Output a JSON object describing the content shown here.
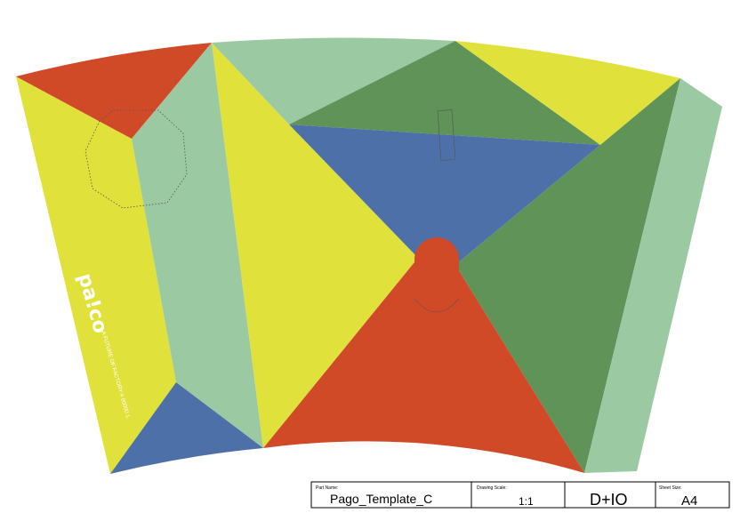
{
  "template": {
    "colors": {
      "yellow": "#e1e13c",
      "red": "#d14a28",
      "light_green": "#9bc9a2",
      "dark_green": "#5f9357",
      "blue": "#4e70a8"
    },
    "branding": {
      "logo": "pa!co",
      "tagline": "A FUTURE OF FACTORY # 00000 1."
    }
  },
  "title_block": {
    "part_name_label": "Part Name:",
    "part_name": "Pago_Template_C",
    "drawing_scale_label": "Drawing Scale:",
    "drawing_scale": "1:1",
    "company": "D+IO",
    "sheet_size_label": "Sheet Size:",
    "sheet_size": "A4"
  }
}
